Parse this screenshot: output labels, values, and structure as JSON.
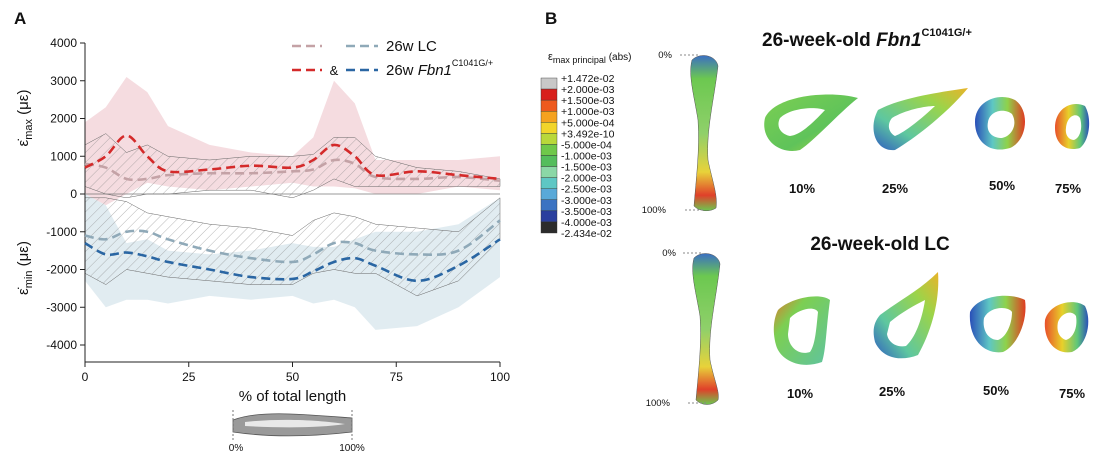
{
  "panel_a": {
    "label": "A"
  },
  "chart_data": {
    "type": "line",
    "x": [
      0,
      5,
      10,
      15,
      20,
      30,
      40,
      50,
      55,
      60,
      65,
      70,
      80,
      90,
      100
    ],
    "series": [
      {
        "name": "26w LC",
        "color": "#c4a2a6",
        "values": [
          800,
          700,
          400,
          400,
          500,
          550,
          550,
          600,
          650,
          900,
          800,
          450,
          400,
          450,
          350
        ]
      },
      {
        "name": "26w ",
        "name_italic": "Fbn1",
        "name_sup": "C1041G/+",
        "color": "#d42a2a",
        "values": [
          700,
          1000,
          1550,
          1000,
          600,
          650,
          750,
          700,
          900,
          1300,
          1000,
          500,
          600,
          500,
          400
        ]
      },
      {
        "color": "#8fa9b8",
        "values": [
          -1100,
          -1200,
          -1000,
          -1000,
          -1200,
          -1500,
          -1700,
          -1800,
          -1600,
          -1300,
          -1300,
          -1500,
          -1600,
          -1500,
          -700
        ]
      },
      {
        "color": "#2a66a3",
        "values": [
          -1300,
          -1600,
          -1550,
          -1650,
          -1800,
          -2000,
          -2200,
          -2250,
          -2050,
          -1800,
          -1700,
          -1900,
          -2300,
          -1900,
          -1200
        ]
      }
    ],
    "bands": [
      {
        "color": "#f3d6da",
        "upper": [
          1900,
          2300,
          3100,
          2700,
          1800,
          1300,
          1100,
          1000,
          1500,
          3000,
          2400,
          900,
          900,
          900,
          1000
        ],
        "lower": [
          0,
          -300,
          0,
          300,
          200,
          100,
          200,
          300,
          200,
          200,
          150,
          0,
          0,
          200,
          100
        ]
      },
      {
        "color": "#dce9ef",
        "upper": [
          0,
          -300,
          -1300,
          -1200,
          -1500,
          -1600,
          -1500,
          -1300,
          -1400,
          -1400,
          -1200,
          -1000,
          -1000,
          -800,
          -100
        ],
        "lower": [
          -2300,
          -3000,
          -2800,
          -2800,
          -2900,
          -2700,
          -2800,
          -2700,
          -2900,
          -2800,
          -3000,
          -3600,
          -3500,
          -3000,
          -2200
        ]
      },
      {
        "color": "#d9a8ae",
        "hatched": true,
        "upper": [
          1300,
          1600,
          1100,
          1300,
          1000,
          900,
          1000,
          1000,
          1050,
          1500,
          1500,
          1000,
          700,
          600,
          400
        ],
        "lower": [
          200,
          0,
          -100,
          0,
          0,
          100,
          100,
          -100,
          100,
          400,
          200,
          200,
          200,
          200,
          200
        ]
      },
      {
        "color": "#9fb9c6",
        "hatched": true,
        "upper": [
          -100,
          -100,
          -200,
          -500,
          -600,
          -800,
          -900,
          -1100,
          -700,
          -500,
          -600,
          -800,
          -900,
          -1000,
          -100
        ],
        "lower": [
          -2100,
          -2400,
          -2000,
          -2100,
          -2200,
          -2300,
          -2400,
          -2400,
          -2100,
          -2000,
          -2100,
          -2100,
          -2700,
          -2300,
          -1200
        ]
      }
    ],
    "xlim": [
      0,
      100
    ],
    "xticks": [
      0,
      25,
      50,
      75,
      100
    ],
    "ylim": [
      -4450,
      4000
    ],
    "yticks": [
      -4000,
      -3000,
      -2000,
      -1000,
      0,
      1000,
      2000,
      3000,
      4000
    ],
    "xlabel": "% of total length",
    "ylabels": [
      {
        "symbol": "ε̇",
        "sub": "max",
        "unit": " (με)"
      },
      {
        "symbol": "ε̇",
        "sub": "min",
        "unit": " (με)"
      }
    ],
    "legend_joiner": "&",
    "inset": {
      "start": "0%",
      "end": "100%"
    }
  },
  "panel_b": {
    "label": "B",
    "colorbar": {
      "symbol": "ε",
      "sub": "max principal",
      "suffix": " (abs)",
      "labels": [
        "+1.472e-02",
        "+2.000e-03",
        "+1.500e-03",
        "+1.000e-03",
        "+5.000e-04",
        "+3.492e-10",
        "-5.000e-04",
        "-1.000e-03",
        "-1.500e-03",
        "-2.000e-03",
        "-2.500e-03",
        "-3.000e-03",
        "-3.500e-03",
        "-4.000e-03",
        "-2.434e-02"
      ],
      "colors": [
        "#c8c8c8",
        "#d8201c",
        "#ee5a1e",
        "#f5a21f",
        "#f2d52a",
        "#b9d83a",
        "#6fc84a",
        "#54bd5c",
        "#8bd7a6",
        "#5ec7c4",
        "#59a9d8",
        "#3b73c2",
        "#2a3f9e",
        "#2c2c2c"
      ]
    },
    "groups": [
      {
        "title": "26-week-old ",
        "title_italic": "Fbn1",
        "title_sup": "C1041G/+",
        "bone": [
          "0%",
          "100%"
        ],
        "sections": [
          "10%",
          "25%",
          "50%",
          "75%"
        ]
      },
      {
        "title": "26-week-old LC",
        "bone": [
          "0%",
          "100%"
        ],
        "sections": [
          "10%",
          "25%",
          "50%",
          "75%"
        ]
      }
    ]
  }
}
